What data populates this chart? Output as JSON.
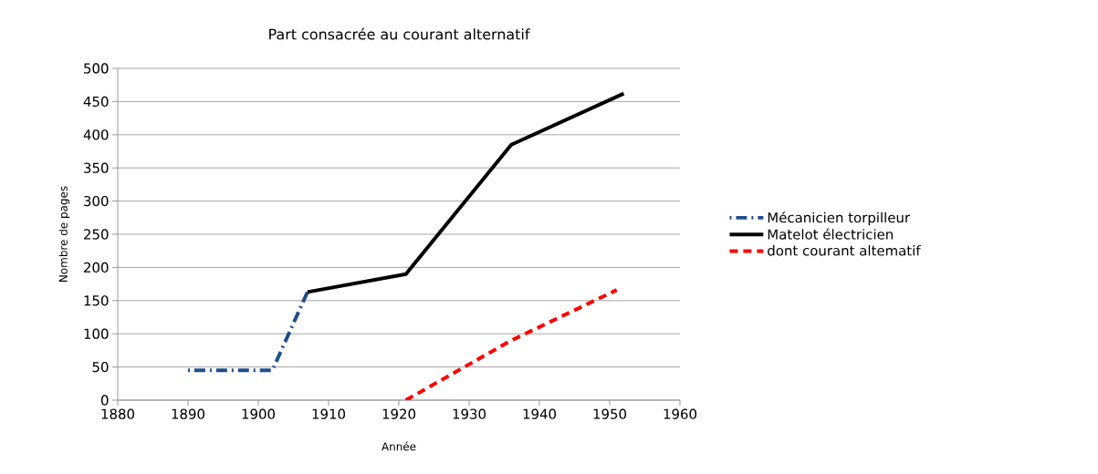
{
  "chart_data": {
    "type": "line",
    "title": "Part consacrée au courant alternatif",
    "xlabel": "Année",
    "ylabel": "Nombre de pages",
    "xlim": [
      1880,
      1960
    ],
    "xticks": [
      1880,
      1890,
      1900,
      1910,
      1920,
      1930,
      1940,
      1950,
      1960
    ],
    "ylim": [
      0,
      500
    ],
    "yticks": [
      0,
      50,
      100,
      150,
      200,
      250,
      300,
      350,
      400,
      450,
      500
    ],
    "grid": "y",
    "legend": "right",
    "series": [
      {
        "name": "Mécanicien torpilleur",
        "color": "#1f4e8c",
        "line_style": "dashdot",
        "x": [
          1890,
          1902,
          1907
        ],
        "values": [
          45,
          45,
          163
        ]
      },
      {
        "name": "Matelot électricien",
        "color": "#000000",
        "line_style": "solid",
        "x": [
          1907,
          1921,
          1936,
          1952
        ],
        "values": [
          163,
          190,
          385,
          462
        ]
      },
      {
        "name": "dont courant altematif",
        "color": "#ff0000",
        "line_style": "dashed",
        "x": [
          1921,
          1936,
          1951
        ],
        "values": [
          0,
          90,
          166
        ]
      }
    ]
  }
}
